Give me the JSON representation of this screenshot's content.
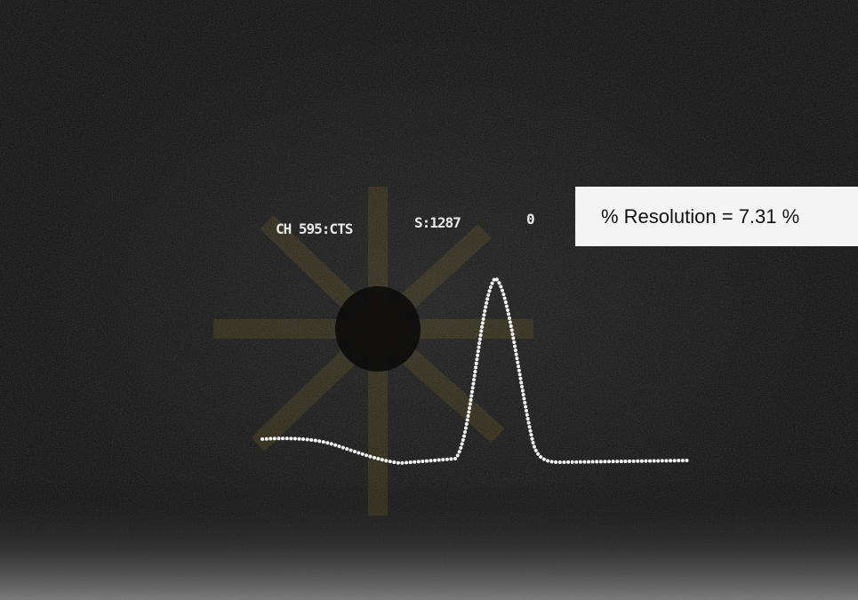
{
  "screen": {
    "channel_readout": "CH 595:CTS",
    "scale_readout": "S:1287",
    "marker": "0"
  },
  "annotation": {
    "text": "% Resolution = 7.31 %"
  }
}
